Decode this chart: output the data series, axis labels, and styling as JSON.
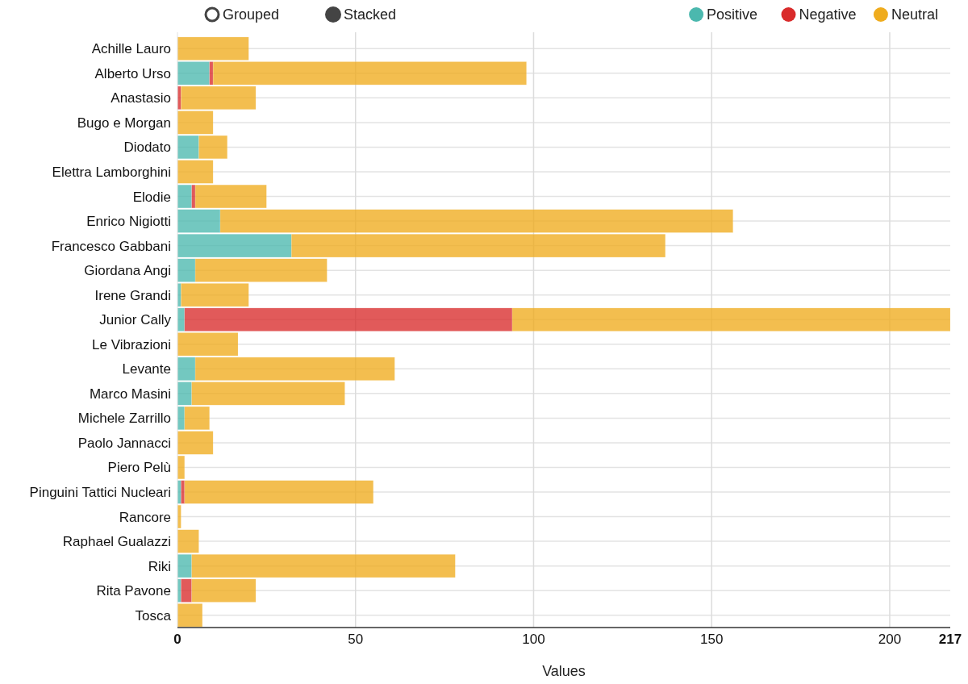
{
  "chart_data": {
    "type": "bar",
    "orientation": "horizontal",
    "stacked": true,
    "xlabel": "Values",
    "categories": [
      "Achille Lauro",
      "Alberto Urso",
      "Anastasio",
      "Bugo e Morgan",
      "Diodato",
      "Elettra Lamborghini",
      "Elodie",
      "Enrico Nigiotti",
      "Francesco Gabbani",
      "Giordana Angi",
      "Irene Grandi",
      "Junior Cally",
      "Le Vibrazioni",
      "Levante",
      "Marco Masini",
      "Michele Zarrillo",
      "Paolo Jannacci",
      "Piero Pelù",
      "Pinguini Tattici Nucleari",
      "Rancore",
      "Raphael Gualazzi",
      "Riki",
      "Rita Pavone",
      "Tosca"
    ],
    "series": [
      {
        "name": "Positive",
        "color": "#4bb8ae",
        "values": [
          0,
          9,
          0,
          0,
          6,
          0,
          4,
          12,
          32,
          5,
          1,
          2,
          0,
          5,
          4,
          2,
          0,
          0,
          1,
          0,
          0,
          4,
          1,
          0
        ]
      },
      {
        "name": "Negative",
        "color": "#d92b2b",
        "values": [
          0,
          1,
          1,
          0,
          0,
          0,
          1,
          0,
          0,
          0,
          0,
          92,
          0,
          0,
          0,
          0,
          0,
          0,
          1,
          0,
          0,
          0,
          3,
          0
        ]
      },
      {
        "name": "Neutral",
        "color": "#efac1e",
        "values": [
          20,
          88,
          21,
          10,
          8,
          10,
          20,
          144,
          105,
          37,
          19,
          123,
          17,
          56,
          43,
          7,
          10,
          2,
          53,
          1,
          6,
          74,
          18,
          7
        ]
      }
    ],
    "xlim": [
      0,
      217
    ],
    "xticks": [
      {
        "value": 0,
        "label": "0"
      },
      50,
      100,
      150,
      200,
      {
        "value": 217,
        "label": "217"
      }
    ],
    "grid": true,
    "legend": "top right",
    "annotations": [
      "Grouped",
      "Stacked"
    ]
  }
}
